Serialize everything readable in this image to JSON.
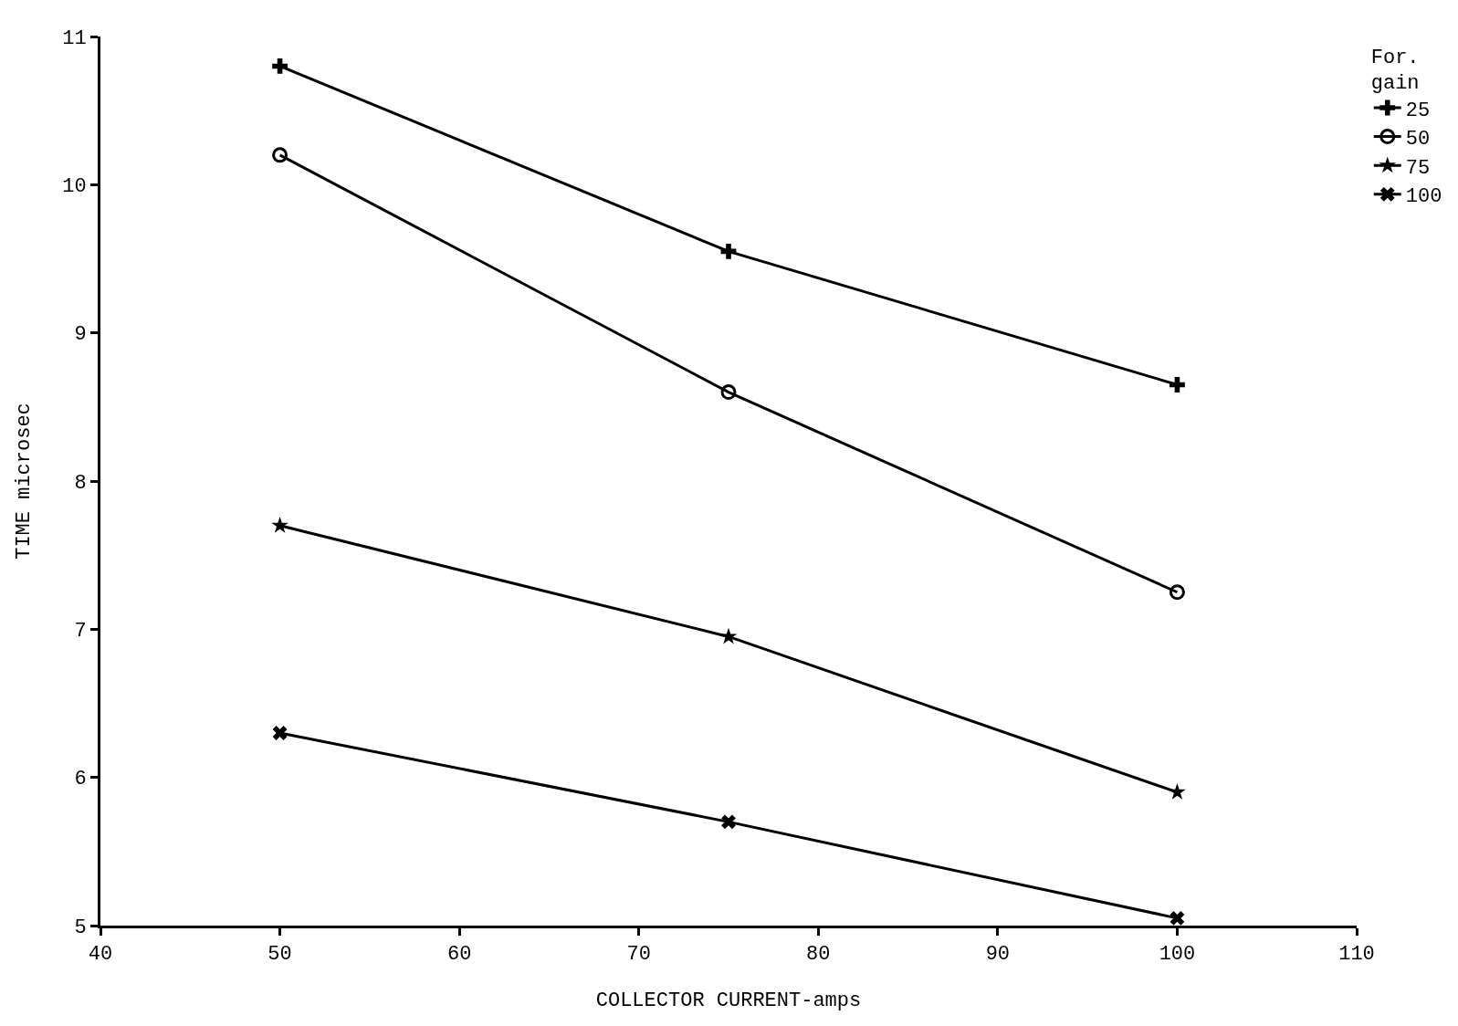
{
  "chart_data": {
    "type": "line",
    "xlabel": "COLLECTOR CURRENT-amps",
    "ylabel": "TIME microsec",
    "legend_title": "For.\ngain",
    "x": [
      50,
      75,
      100
    ],
    "series": [
      {
        "name": "25",
        "color": "#000000",
        "marker": "cross",
        "values": [
          10.8,
          9.55,
          8.65
        ]
      },
      {
        "name": "50",
        "color": "#000000",
        "marker": "circle",
        "values": [
          10.2,
          8.6,
          7.25
        ]
      },
      {
        "name": "75",
        "color": "#000000",
        "marker": "star",
        "values": [
          7.7,
          6.95,
          5.9
        ]
      },
      {
        "name": "100",
        "color": "#000000",
        "marker": "x",
        "values": [
          6.3,
          5.7,
          5.05
        ]
      }
    ],
    "xlim": [
      40,
      110
    ],
    "xticks": [
      40,
      50,
      60,
      70,
      80,
      90,
      100,
      110
    ],
    "ylim": [
      5,
      11
    ],
    "yticks": [
      5,
      6,
      7,
      8,
      9,
      10,
      11
    ],
    "legend": "top right",
    "line_style": "solid"
  }
}
